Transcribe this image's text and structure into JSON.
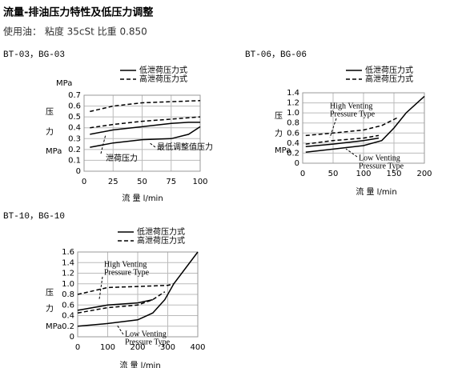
{
  "header": {
    "title": "流量-排油压力特性及低压力调整",
    "subtitle": "使用油： 粘度 35cSt 比重 0.850"
  },
  "chart_data": [
    {
      "type": "line",
      "title": "BT-03，BG-03",
      "xlabel": "流  量  l/min",
      "ylabel": [
        "压",
        "力",
        "MPa"
      ],
      "y_unit_top": "MPa",
      "legend": [
        {
          "label": "低泄荷压力式",
          "dash": false
        },
        {
          "label": "高泄荷压力式",
          "dash": true
        }
      ],
      "xlim": [
        0,
        100
      ],
      "xticks": [
        0,
        25,
        50,
        75,
        100
      ],
      "ylim": [
        0,
        0.7
      ],
      "yticks": [
        0,
        0.1,
        0.2,
        0.3,
        0.4,
        0.5,
        0.6,
        0.7
      ],
      "grid": true,
      "annotations": [
        "泄荷压力",
        "最低调整值压力"
      ],
      "series": [
        {
          "color": "#000000",
          "dash": true,
          "x": [
            5,
            25,
            50,
            75,
            100
          ],
          "values": [
            0.55,
            0.6,
            0.63,
            0.64,
            0.65
          ]
        },
        {
          "color": "#000000",
          "dash": true,
          "x": [
            5,
            25,
            50,
            75,
            100
          ],
          "values": [
            0.4,
            0.43,
            0.46,
            0.48,
            0.5
          ]
        },
        {
          "color": "#000000",
          "dash": false,
          "x": [
            5,
            25,
            50,
            75,
            90,
            100
          ],
          "values": [
            0.34,
            0.38,
            0.41,
            0.44,
            0.45,
            0.45
          ]
        },
        {
          "color": "#000000",
          "dash": false,
          "x": [
            5,
            25,
            50,
            75,
            90,
            100
          ],
          "values": [
            0.22,
            0.26,
            0.29,
            0.3,
            0.34,
            0.41
          ]
        }
      ]
    },
    {
      "type": "line",
      "title": "BT-06，BG-06",
      "xlabel": "流  量  l/min",
      "ylabel": [
        "压",
        "力",
        "MPa"
      ],
      "legend": [
        {
          "label": "低泄荷压力式",
          "dash": false
        },
        {
          "label": "高泄荷压力式",
          "dash": true
        }
      ],
      "xlim": [
        0,
        200
      ],
      "xticks": [
        0,
        50,
        100,
        150,
        200
      ],
      "ylim": [
        0,
        1.4
      ],
      "yticks": [
        0,
        0.2,
        0.4,
        0.6,
        0.8,
        {
          "value": 1,
          "label": "1.0"
        },
        1.2,
        1.4
      ],
      "grid": true,
      "annotations": [
        [
          "High Venting",
          "Pressure Type"
        ],
        [
          "Low Venting",
          "Pressure Type"
        ]
      ],
      "series": [
        {
          "color": "#000000",
          "dash": false,
          "x": [
            5,
            50,
            100,
            130,
            150,
            170,
            200
          ],
          "values": [
            0.22,
            0.28,
            0.35,
            0.45,
            0.7,
            1.0,
            1.33
          ]
        },
        {
          "color": "#000000",
          "dash": true,
          "x": [
            5,
            50,
            100,
            130,
            155
          ],
          "values": [
            0.55,
            0.6,
            0.66,
            0.75,
            0.9
          ]
        },
        {
          "color": "#000000",
          "dash": true,
          "x": [
            5,
            50,
            100,
            125
          ],
          "values": [
            0.38,
            0.45,
            0.5,
            0.55
          ]
        },
        {
          "color": "#000000",
          "dash": false,
          "x": [
            5,
            50,
            100,
            125
          ],
          "values": [
            0.33,
            0.38,
            0.45,
            0.5
          ]
        }
      ]
    },
    {
      "type": "line",
      "title": "BT-10，BG-10",
      "xlabel": "流  量  l/min",
      "ylabel": [
        "压",
        "力",
        "MPa"
      ],
      "legend": [
        {
          "label": "低泄荷压力式",
          "dash": false
        },
        {
          "label": "高泄荷压力式",
          "dash": true
        }
      ],
      "xlim": [
        0,
        400
      ],
      "xticks": [
        0,
        100,
        200,
        300,
        400
      ],
      "ylim": [
        0,
        1.6
      ],
      "yticks": [
        0,
        0.2,
        0.4,
        0.6,
        0.8,
        {
          "value": 1,
          "label": "1.0"
        },
        1.2,
        1.4,
        1.6
      ],
      "grid": true,
      "annotations": [
        [
          "High Venting",
          "Pressure Type"
        ],
        [
          "Low Venting",
          "Pressure Type"
        ]
      ],
      "series": [
        {
          "color": "#000000",
          "dash": false,
          "x": [
            0,
            100,
            200,
            250,
            290,
            320,
            400
          ],
          "values": [
            0.2,
            0.25,
            0.32,
            0.45,
            0.7,
            1.0,
            1.6
          ]
        },
        {
          "color": "#000000",
          "dash": true,
          "x": [
            0,
            100,
            200,
            300,
            320
          ],
          "values": [
            0.8,
            0.93,
            0.95,
            0.97,
            1.0
          ]
        },
        {
          "color": "#000000",
          "dash": true,
          "x": [
            0,
            100,
            200,
            250,
            290
          ],
          "values": [
            0.45,
            0.55,
            0.6,
            0.7,
            0.85
          ]
        },
        {
          "color": "#000000",
          "dash": false,
          "x": [
            0,
            100,
            200,
            250
          ],
          "values": [
            0.5,
            0.6,
            0.64,
            0.7
          ]
        }
      ]
    }
  ]
}
